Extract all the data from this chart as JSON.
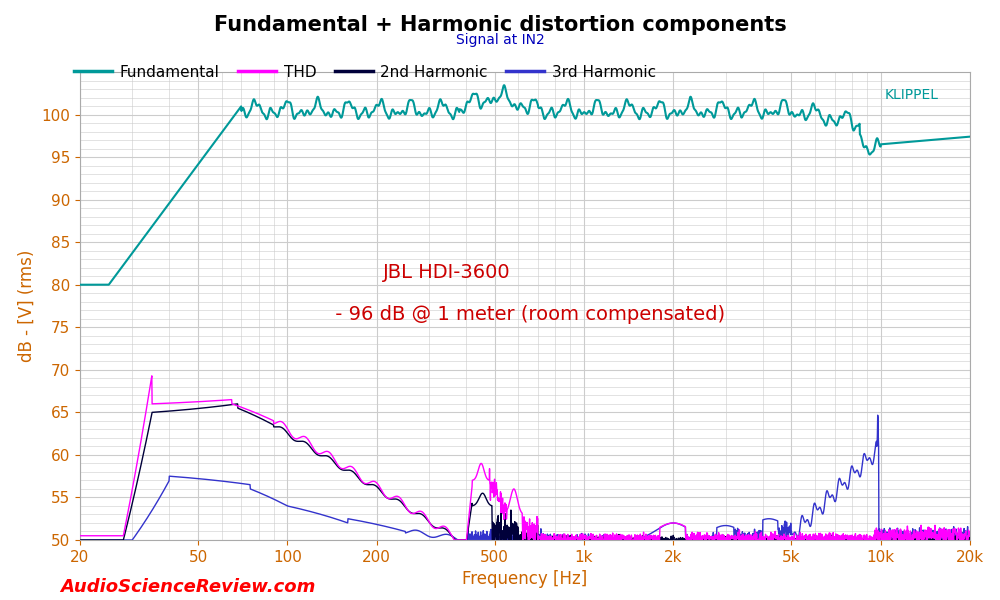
{
  "title": "Fundamental + Harmonic distortion components",
  "subtitle": "Signal at IN2",
  "xlabel": "Frequency [Hz]",
  "ylabel": "dB - [V] (rms)",
  "xlim": [
    20,
    20000
  ],
  "ylim": [
    50,
    105
  ],
  "yticks": [
    50,
    55,
    60,
    65,
    70,
    75,
    80,
    85,
    90,
    95,
    100
  ],
  "xticks": [
    20,
    50,
    100,
    200,
    500,
    1000,
    2000,
    5000,
    10000,
    20000
  ],
  "xticklabels": [
    "20",
    "50",
    "100",
    "200",
    "500",
    "1k",
    "2k",
    "5k",
    "10k",
    "20k"
  ],
  "annotation_line1": "JBL HDI-3600",
  "annotation_line2": " - 96 dB @ 1 meter (room compensated)",
  "annotation_color": "#cc0000",
  "watermark_text": "AudioScienceReview.com",
  "klippel_text": "KLIPPEL",
  "colors": {
    "fundamental": "#009999",
    "thd": "#ff00ff",
    "2nd_harmonic": "#00003a",
    "3rd_harmonic": "#3333cc"
  },
  "title_color": "#000000",
  "subtitle_color": "#0000bb",
  "label_color": "#cc6600",
  "tick_color": "#cc6600",
  "grid_color": "#cccccc",
  "background_color": "#ffffff"
}
